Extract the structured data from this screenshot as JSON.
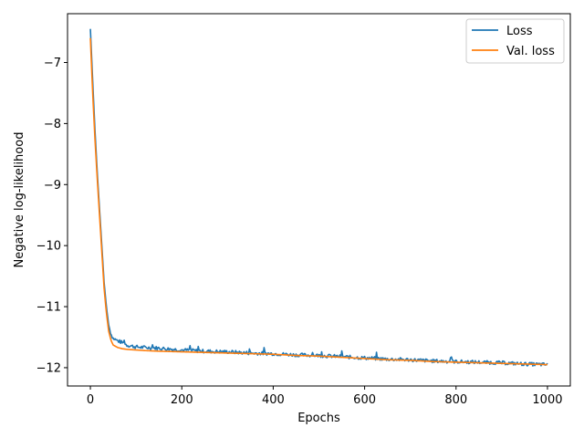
{
  "chart_data": {
    "type": "line",
    "title": "",
    "xlabel": "Epochs",
    "ylabel": "Negative log-likelihood",
    "xlim": [
      -50,
      1050
    ],
    "ylim": [
      -12.3,
      -6.2
    ],
    "xticks": [
      0,
      200,
      400,
      600,
      800,
      1000
    ],
    "yticks": [
      -12,
      -11,
      -10,
      -9,
      -8,
      -7
    ],
    "ytick_labels": [
      "−12",
      "−11",
      "−10",
      "−9",
      "−8",
      "−7"
    ],
    "legend_position": "top-right",
    "grid": false,
    "series": [
      {
        "name": "Loss",
        "color": "#1f77b4",
        "x": [
          0,
          5,
          10,
          15,
          20,
          25,
          30,
          35,
          40,
          45,
          50,
          60,
          70,
          80,
          100,
          120,
          150,
          200,
          250,
          300,
          350,
          400,
          450,
          500,
          550,
          600,
          650,
          700,
          750,
          800,
          850,
          900,
          950,
          1000
        ],
        "y": [
          -6.45,
          -7.3,
          -8.1,
          -8.8,
          -9.4,
          -10.0,
          -10.6,
          -11.0,
          -11.3,
          -11.45,
          -11.52,
          -11.56,
          -11.59,
          -11.63,
          -11.66,
          -11.67,
          -11.68,
          -11.71,
          -11.73,
          -11.74,
          -11.76,
          -11.77,
          -11.79,
          -11.8,
          -11.82,
          -11.84,
          -11.86,
          -11.87,
          -11.89,
          -11.9,
          -11.91,
          -11.92,
          -11.94,
          -11.95
        ],
        "noise": 0.03
      },
      {
        "name": "Val. loss",
        "color": "#ff7f0e",
        "x": [
          0,
          5,
          10,
          15,
          20,
          25,
          30,
          35,
          40,
          45,
          50,
          60,
          70,
          80,
          100,
          120,
          150,
          200,
          250,
          300,
          350,
          400,
          450,
          500,
          550,
          600,
          650,
          700,
          750,
          800,
          850,
          900,
          950,
          1000
        ],
        "y": [
          -6.6,
          -7.5,
          -8.25,
          -8.9,
          -9.5,
          -10.1,
          -10.7,
          -11.1,
          -11.4,
          -11.55,
          -11.63,
          -11.67,
          -11.69,
          -11.7,
          -11.71,
          -11.72,
          -11.73,
          -11.74,
          -11.75,
          -11.76,
          -11.77,
          -11.78,
          -11.8,
          -11.81,
          -11.83,
          -11.85,
          -11.87,
          -11.88,
          -11.9,
          -11.91,
          -11.92,
          -11.93,
          -11.94,
          -11.95
        ],
        "noise": 0
      }
    ]
  }
}
